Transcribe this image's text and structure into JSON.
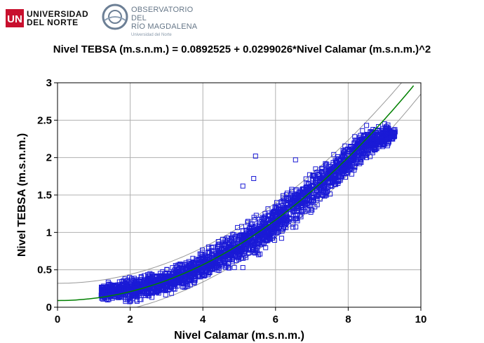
{
  "header": {
    "logo1_line1": "UNIVERSIDAD",
    "logo1_line2": "DEL NORTE",
    "logo2_line1": "OBSERVATORIO DEL",
    "logo2_line2": "RÍO MAGDALENA",
    "logo2_sub": "Universidad del Norte"
  },
  "chart_data": {
    "type": "scatter",
    "title": "Nivel TEBSA (m.s.n.m.) = 0.0892525 + 0.0299026*Nivel Calamar (m.s.n.m.)^2",
    "xlabel": "Nivel Calamar (m.s.n.m.)",
    "ylabel": "Nivel TEBSA (m.s.n.m.)",
    "xlim": [
      0,
      10
    ],
    "ylim": [
      0,
      3
    ],
    "xticks": [
      "0",
      "2",
      "4",
      "6",
      "8",
      "10"
    ],
    "yticks": [
      "0",
      "0.5",
      "1",
      "1.5",
      "2",
      "2.5",
      "3"
    ],
    "grid": true,
    "marker": "open-square",
    "colors": {
      "points": "#1a1ad6",
      "fit": "#008000",
      "bands": "#999999"
    },
    "fit": {
      "intercept": 0.0892525,
      "coef": 0.0299026,
      "power": 2,
      "x_range": [
        0,
        9.8
      ]
    },
    "prediction_band_halfwidth": 0.23,
    "cloud": [
      {
        "x": 1.2,
        "y_low": 0.06,
        "y_high": 0.34
      },
      {
        "x": 1.5,
        "y_low": 0.04,
        "y_high": 0.38
      },
      {
        "x": 2.0,
        "y_low": 0.02,
        "y_high": 0.45
      },
      {
        "x": 2.5,
        "y_low": 0.06,
        "y_high": 0.5
      },
      {
        "x": 3.0,
        "y_low": 0.12,
        "y_high": 0.56
      },
      {
        "x": 3.5,
        "y_low": 0.2,
        "y_high": 0.66
      },
      {
        "x": 4.0,
        "y_low": 0.3,
        "y_high": 0.8
      },
      {
        "x": 4.5,
        "y_low": 0.4,
        "y_high": 0.98
      },
      {
        "x": 5.0,
        "y_low": 0.5,
        "y_high": 1.12
      },
      {
        "x": 5.5,
        "y_low": 0.64,
        "y_high": 1.28
      },
      {
        "x": 6.0,
        "y_low": 0.82,
        "y_high": 1.46
      },
      {
        "x": 6.5,
        "y_low": 1.0,
        "y_high": 1.7
      },
      {
        "x": 7.0,
        "y_low": 1.2,
        "y_high": 1.88
      },
      {
        "x": 7.5,
        "y_low": 1.45,
        "y_high": 2.08
      },
      {
        "x": 8.0,
        "y_low": 1.7,
        "y_high": 2.25
      },
      {
        "x": 8.5,
        "y_low": 1.92,
        "y_high": 2.48
      },
      {
        "x": 9.0,
        "y_low": 2.05,
        "y_high": 2.5
      },
      {
        "x": 9.3,
        "y_low": 2.25,
        "y_high": 2.4
      }
    ],
    "outliers": [
      {
        "x": 5.45,
        "y": 2.02
      },
      {
        "x": 5.1,
        "y": 1.62
      },
      {
        "x": 5.4,
        "y": 1.72
      },
      {
        "x": 6.55,
        "y": 1.97
      },
      {
        "x": 5.1,
        "y": 0.53
      },
      {
        "x": 4.0,
        "y": 0.64
      }
    ]
  }
}
